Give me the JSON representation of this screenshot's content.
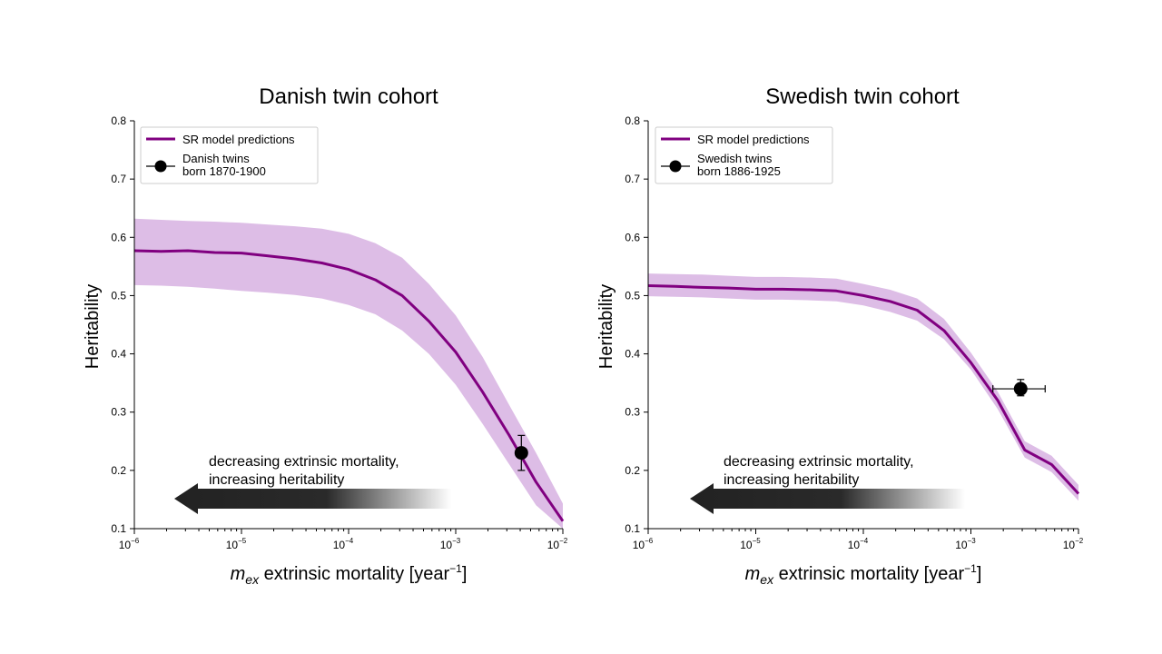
{
  "chart_data": [
    {
      "type": "line",
      "title": "Danish twin cohort",
      "xlabel": {
        "symbol": "m",
        "subscript": "ex",
        "text": "extrinsic mortality [year",
        "exponent": "−1",
        "close": "]"
      },
      "ylabel": "Heritability",
      "xscale": "log",
      "xlim": [
        1e-06,
        0.01
      ],
      "ylim": [
        0.1,
        0.8
      ],
      "grid": false,
      "legend_position": "top-left",
      "x_ticks": [
        {
          "base": "10",
          "exp": "−6"
        },
        {
          "base": "10",
          "exp": "−5"
        },
        {
          "base": "10",
          "exp": "−4"
        },
        {
          "base": "10",
          "exp": "−3"
        },
        {
          "base": "10",
          "exp": "−2"
        }
      ],
      "y_ticks": [
        "0.1",
        "0.2",
        "0.3",
        "0.4",
        "0.5",
        "0.6",
        "0.7",
        "0.8"
      ],
      "series": [
        {
          "name": "SR model predictions",
          "color": "#800080",
          "band_color": "#ddbde6",
          "log_x": [
            -6,
            -5.75,
            -5.5,
            -5.25,
            -5,
            -4.75,
            -4.5,
            -4.25,
            -4,
            -3.75,
            -3.5,
            -3.25,
            -3,
            -2.75,
            -2.5,
            -2.25,
            -2
          ],
          "y": [
            0.577,
            0.576,
            0.577,
            0.574,
            0.573,
            0.568,
            0.563,
            0.556,
            0.545,
            0.527,
            0.5,
            0.456,
            0.403,
            0.335,
            0.26,
            0.18,
            0.113
          ],
          "y_lower": [
            0.518,
            0.517,
            0.515,
            0.512,
            0.508,
            0.505,
            0.501,
            0.495,
            0.484,
            0.468,
            0.44,
            0.4,
            0.347,
            0.28,
            0.21,
            0.14,
            0.1
          ],
          "y_upper": [
            0.632,
            0.63,
            0.628,
            0.627,
            0.625,
            0.622,
            0.619,
            0.615,
            0.606,
            0.59,
            0.565,
            0.52,
            0.466,
            0.395,
            0.312,
            0.23,
            0.143
          ]
        }
      ],
      "observation": {
        "name": "Danish twins born 1870-1900",
        "legend_lines": [
          "Danish twins",
          "born 1870-1900"
        ],
        "x": 0.0041,
        "y": 0.23,
        "y_err": [
          0.2,
          0.26
        ],
        "x_err": null
      },
      "arrow_annotation": [
        "decreasing extrinsic mortality,",
        "increasing heritability"
      ]
    },
    {
      "type": "line",
      "title": "Swedish twin cohort",
      "xlabel": {
        "symbol": "m",
        "subscript": "ex",
        "text": "extrinsic mortality [year",
        "exponent": "−1",
        "close": "]"
      },
      "ylabel": "Heritability",
      "xscale": "log",
      "xlim": [
        1e-06,
        0.01
      ],
      "ylim": [
        0.1,
        0.8
      ],
      "grid": false,
      "legend_position": "top-left",
      "x_ticks": [
        {
          "base": "10",
          "exp": "−6"
        },
        {
          "base": "10",
          "exp": "−5"
        },
        {
          "base": "10",
          "exp": "−4"
        },
        {
          "base": "10",
          "exp": "−3"
        },
        {
          "base": "10",
          "exp": "−2"
        }
      ],
      "y_ticks": [
        "0.1",
        "0.2",
        "0.3",
        "0.4",
        "0.5",
        "0.6",
        "0.7",
        "0.8"
      ],
      "series": [
        {
          "name": "SR model predictions",
          "color": "#800080",
          "band_color": "#ddbde6",
          "log_x": [
            -6,
            -5.75,
            -5.5,
            -5.25,
            -5,
            -4.75,
            -4.5,
            -4.25,
            -4,
            -3.75,
            -3.5,
            -3.25,
            -3,
            -2.75,
            -2.5,
            -2.25,
            -2
          ],
          "y": [
            0.517,
            0.516,
            0.514,
            0.513,
            0.511,
            0.511,
            0.51,
            0.508,
            0.5,
            0.49,
            0.475,
            0.44,
            0.385,
            0.32,
            0.235,
            0.21,
            0.16
          ],
          "y_lower": [
            0.499,
            0.498,
            0.497,
            0.495,
            0.493,
            0.493,
            0.492,
            0.49,
            0.483,
            0.472,
            0.457,
            0.425,
            0.373,
            0.305,
            0.222,
            0.197,
            0.148
          ],
          "y_upper": [
            0.538,
            0.537,
            0.536,
            0.534,
            0.532,
            0.532,
            0.531,
            0.529,
            0.52,
            0.51,
            0.495,
            0.46,
            0.402,
            0.335,
            0.25,
            0.225,
            0.175
          ]
        }
      ],
      "observation": {
        "name": "Swedish twins born 1886-1925",
        "legend_lines": [
          "Swedish twins",
          "born 1886-1925"
        ],
        "x": 0.0029,
        "y": 0.34,
        "y_err": [
          0.328,
          0.356
        ],
        "x_err": [
          0.0016,
          0.0049
        ]
      },
      "arrow_annotation": [
        "decreasing extrinsic mortality,",
        "increasing heritability"
      ]
    }
  ]
}
